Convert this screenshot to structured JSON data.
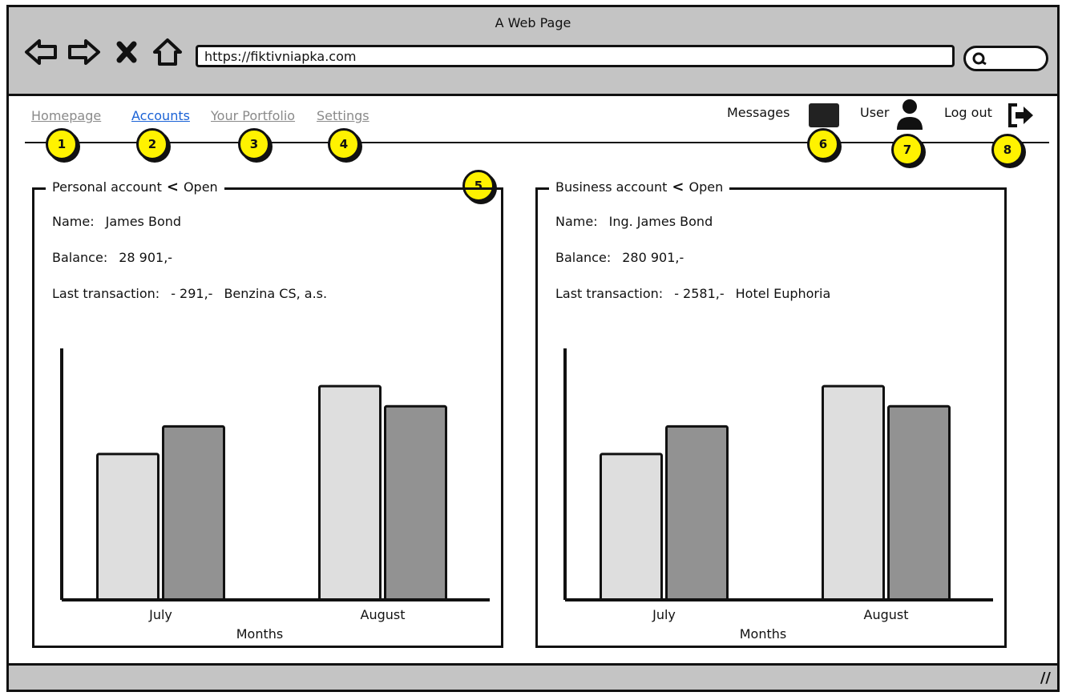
{
  "window": {
    "title": "A Web Page"
  },
  "browser": {
    "url": "https://fiktivniapka.com",
    "buttons": [
      {
        "icon": "back-arrow-icon"
      },
      {
        "icon": "forward-arrow-icon"
      },
      {
        "icon": "close-icon"
      },
      {
        "icon": "home-icon"
      }
    ]
  },
  "nav": {
    "links": [
      {
        "label": "Homepage",
        "active": false
      },
      {
        "label": "Accounts",
        "active": true
      },
      {
        "label": "Your Portfolio",
        "active": false
      },
      {
        "label": "Settings",
        "active": false
      }
    ],
    "messages_label": "Messages",
    "user_label": "User",
    "logout_label": "Log out"
  },
  "badges": [
    "1",
    "2",
    "3",
    "4",
    "5",
    "6",
    "7",
    "8"
  ],
  "accounts": [
    {
      "title": "Personal account",
      "open_label": "Open",
      "name_label": "Name:",
      "name": "James Bond",
      "balance_label": "Balance:",
      "balance": "28 901,-",
      "last_label": "Last transaction:",
      "last_amount": "- 291,-",
      "last_party": "Benzina CS, a.s."
    },
    {
      "title": "Business account",
      "open_label": "Open",
      "name_label": "Name:",
      "name": "Ing. James Bond",
      "balance_label": "Balance:",
      "balance": "280 901,-",
      "last_label": "Last transaction:",
      "last_amount": "- 2581,-",
      "last_party": "Hotel Euphoria"
    }
  ],
  "chart_data": [
    {
      "type": "bar",
      "categories": [
        "July",
        "August"
      ],
      "xlabel": "Months",
      "ylabel": "",
      "ylim": [
        0,
        100
      ],
      "series": [
        {
          "values": [
            58,
            85
          ],
          "color": "#dedede"
        },
        {
          "values": [
            69,
            77
          ],
          "color": "#929292"
        }
      ]
    },
    {
      "type": "bar",
      "categories": [
        "July",
        "August"
      ],
      "xlabel": "Months",
      "ylabel": "",
      "ylim": [
        0,
        100
      ],
      "series": [
        {
          "values": [
            58,
            85
          ],
          "color": "#dedede"
        },
        {
          "values": [
            69,
            77
          ],
          "color": "#929292"
        }
      ]
    }
  ]
}
